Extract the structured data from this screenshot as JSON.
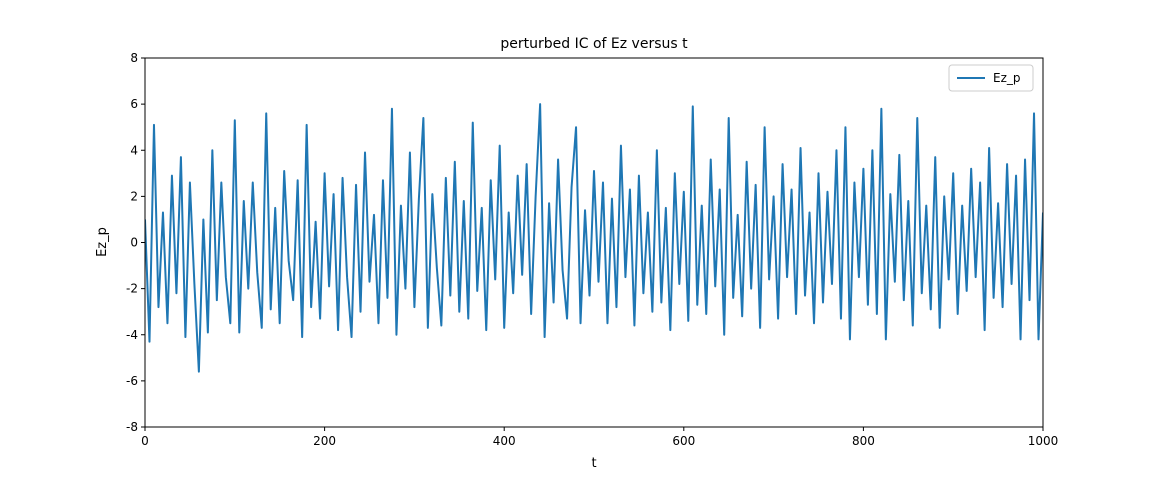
{
  "chart_data": {
    "type": "line",
    "title": "perturbed IC of Ez versus t",
    "x_label": "t",
    "y_label": "Ez_p",
    "xlim": [
      0,
      1000
    ],
    "ylim": [
      -8,
      8
    ],
    "xticks": [
      0,
      200,
      400,
      600,
      800,
      1000
    ],
    "yticks": [
      -8,
      -6,
      -4,
      -2,
      0,
      2,
      4,
      6,
      8
    ],
    "legend": "upper right",
    "grid": false,
    "x": [
      0,
      5,
      10,
      15,
      20,
      25,
      30,
      35,
      40,
      45,
      50,
      55,
      60,
      65,
      70,
      75,
      80,
      85,
      90,
      95,
      100,
      105,
      110,
      115,
      120,
      125,
      130,
      135,
      140,
      145,
      150,
      155,
      160,
      165,
      170,
      175,
      180,
      185,
      190,
      195,
      200,
      205,
      210,
      215,
      220,
      225,
      230,
      235,
      240,
      245,
      250,
      255,
      260,
      265,
      270,
      275,
      280,
      285,
      290,
      295,
      300,
      305,
      310,
      315,
      320,
      325,
      330,
      335,
      340,
      345,
      350,
      355,
      360,
      365,
      370,
      375,
      380,
      385,
      390,
      395,
      400,
      405,
      410,
      415,
      420,
      425,
      430,
      435,
      440,
      445,
      450,
      455,
      460,
      465,
      470,
      475,
      480,
      485,
      490,
      495,
      500,
      505,
      510,
      515,
      520,
      525,
      530,
      535,
      540,
      545,
      550,
      555,
      560,
      565,
      570,
      575,
      580,
      585,
      590,
      595,
      600,
      605,
      610,
      615,
      620,
      625,
      630,
      635,
      640,
      645,
      650,
      655,
      660,
      665,
      670,
      675,
      680,
      685,
      690,
      695,
      700,
      705,
      710,
      715,
      720,
      725,
      730,
      735,
      740,
      745,
      750,
      755,
      760,
      765,
      770,
      775,
      780,
      785,
      790,
      795,
      800,
      805,
      810,
      815,
      820,
      825,
      830,
      835,
      840,
      845,
      850,
      855,
      860,
      865,
      870,
      875,
      880,
      885,
      890,
      895,
      900,
      905,
      910,
      915,
      920,
      925,
      930,
      935,
      940,
      945,
      950,
      955,
      960,
      965,
      970,
      975,
      980,
      985,
      990,
      995,
      1000
    ],
    "series": [
      {
        "name": "Ez_p",
        "color": "#1f77b4",
        "values": [
          1.0,
          -4.3,
          5.1,
          -2.8,
          1.3,
          -3.5,
          2.9,
          -2.2,
          3.7,
          -4.1,
          2.6,
          -1.8,
          -5.6,
          1.0,
          -3.9,
          4.0,
          -2.5,
          2.6,
          -1.5,
          -3.5,
          5.3,
          -3.9,
          1.8,
          -2.0,
          2.6,
          -1.3,
          -3.7,
          5.6,
          -2.9,
          1.5,
          -3.5,
          3.1,
          -0.8,
          -2.5,
          2.7,
          -4.1,
          5.1,
          -2.8,
          0.9,
          -3.3,
          3.0,
          -1.9,
          2.1,
          -3.8,
          2.8,
          -1.5,
          -4.1,
          2.5,
          -3.0,
          3.9,
          -1.7,
          1.2,
          -3.5,
          2.7,
          -2.4,
          5.8,
          -4.0,
          1.6,
          -2.0,
          3.9,
          -2.8,
          1.9,
          5.4,
          -3.7,
          2.1,
          -1.1,
          -3.6,
          2.8,
          -2.3,
          3.5,
          -3.0,
          1.8,
          -3.3,
          5.2,
          -2.1,
          1.5,
          -3.8,
          2.7,
          -1.6,
          4.2,
          -3.7,
          1.3,
          -2.2,
          2.9,
          -1.4,
          3.4,
          -3.1,
          2.0,
          6.0,
          -4.1,
          1.7,
          -2.6,
          3.6,
          -1.2,
          -3.3,
          2.4,
          5.0,
          -3.5,
          1.4,
          -2.3,
          3.1,
          -1.7,
          2.6,
          -3.5,
          1.9,
          -2.8,
          4.2,
          -1.5,
          2.3,
          -3.6,
          2.9,
          -2.2,
          1.3,
          -3.0,
          4.0,
          -2.6,
          1.5,
          -3.8,
          3.0,
          -1.8,
          2.2,
          -3.4,
          5.9,
          -2.7,
          1.6,
          -3.1,
          3.6,
          -1.9,
          2.3,
          -4.0,
          5.4,
          -2.4,
          1.2,
          -3.2,
          3.5,
          -2.0,
          2.5,
          -3.7,
          5.0,
          -1.6,
          2.0,
          -3.3,
          3.4,
          -1.5,
          2.3,
          -3.1,
          4.1,
          -2.3,
          1.3,
          -3.5,
          3.0,
          -2.6,
          2.2,
          -1.8,
          4.0,
          -3.3,
          5.0,
          -4.2,
          2.6,
          -1.5,
          3.2,
          -2.7,
          4.0,
          -3.1,
          5.8,
          -4.2,
          2.1,
          -1.7,
          3.8,
          -2.5,
          1.8,
          -3.6,
          5.4,
          -2.2,
          1.6,
          -2.9,
          3.7,
          -3.7,
          2.0,
          -1.6,
          3.0,
          -3.1,
          1.6,
          -2.1,
          3.2,
          -1.5,
          2.6,
          -3.8,
          4.1,
          -2.4,
          1.7,
          -2.8,
          3.4,
          -1.8,
          2.9,
          -4.2,
          3.6,
          -2.5,
          5.6,
          -4.2,
          1.3
        ]
      }
    ]
  }
}
